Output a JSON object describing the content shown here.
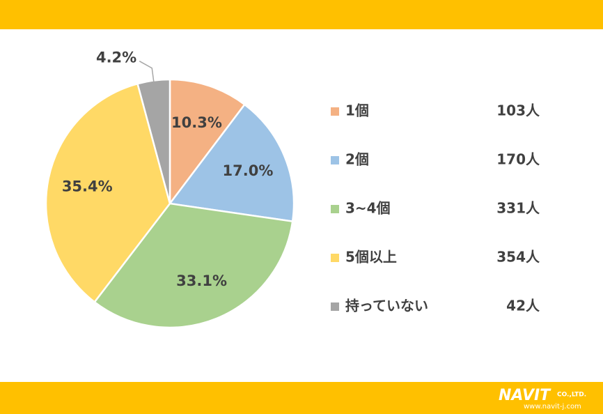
{
  "chart_data": {
    "type": "pie",
    "categories": [
      "1個",
      "2個",
      "3~4個",
      "5個以上",
      "持っていない"
    ],
    "values": [
      10.3,
      17.0,
      33.1,
      35.4,
      4.2
    ],
    "value_labels": [
      "10.3%",
      "17.0%",
      "33.1%",
      "35.4%",
      "4.2%"
    ],
    "count_labels": [
      "103人",
      "170人",
      "331人",
      "354人",
      "42人"
    ],
    "colors": [
      "#F4B183",
      "#9DC3E6",
      "#A9D18E",
      "#FFD966",
      "#A5A5A5"
    ],
    "legend": "right"
  },
  "footer": {
    "logo": "NAVIT",
    "company": "CO.,LTD.",
    "url": "www.navit-j.com"
  }
}
